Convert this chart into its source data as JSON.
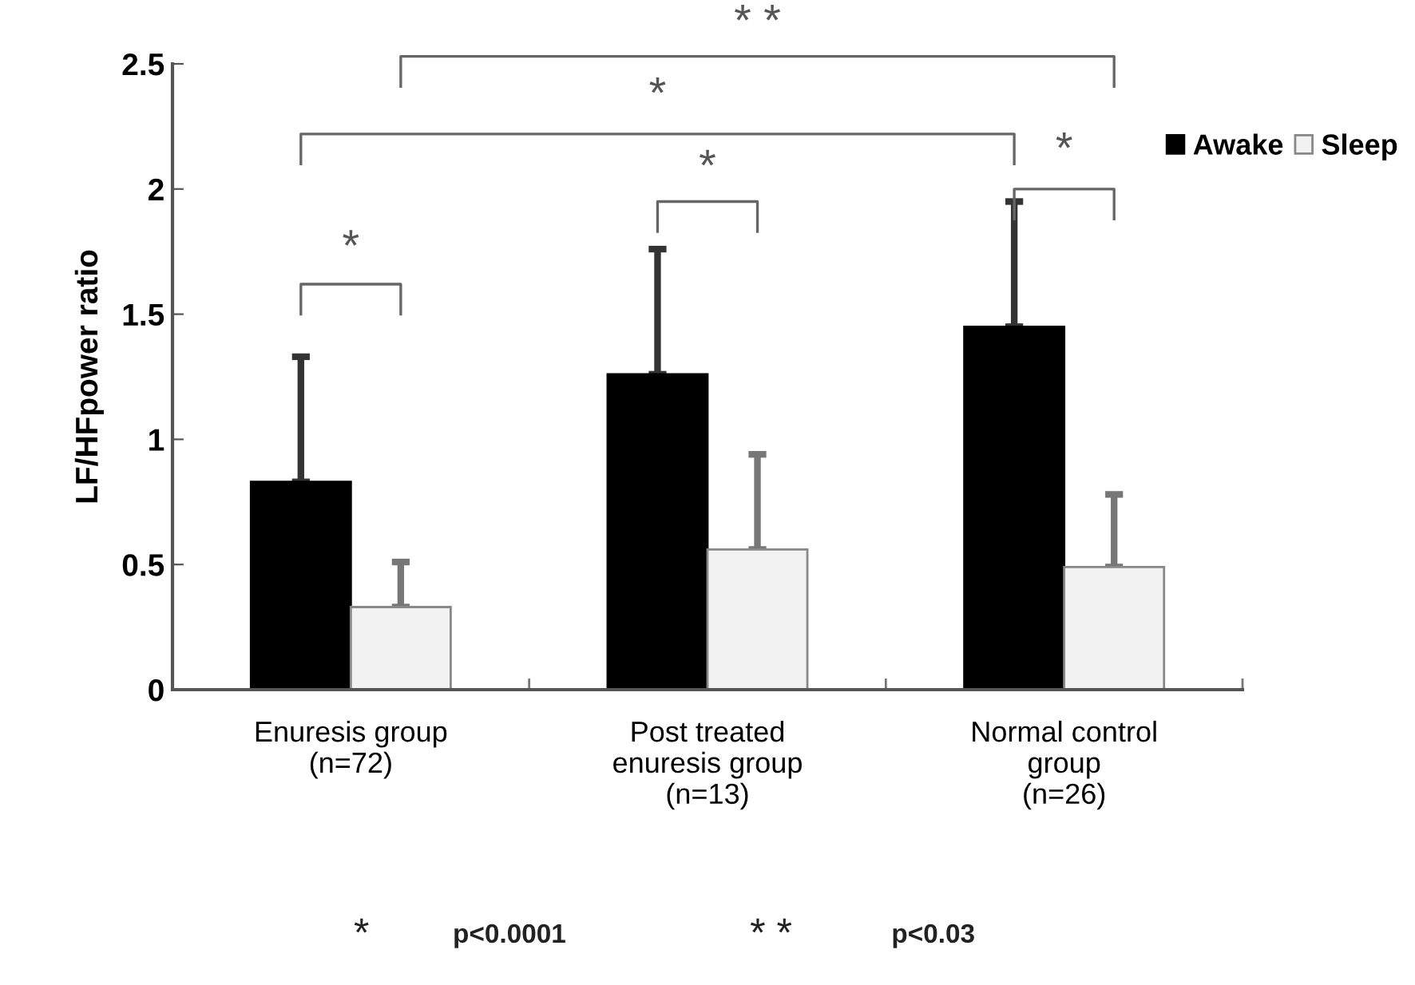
{
  "chart_data": {
    "type": "bar",
    "ylabel": "LF/HFpower ratio",
    "categories": [
      "Enuresis group\n(n=72)",
      "Post treated\nenuresis group\n(n=13)",
      "Normal control\ngroup\n(n=26)"
    ],
    "series": [
      {
        "name": "Awake",
        "color": "#000000",
        "values": [
          0.83,
          1.26,
          1.45
        ],
        "errors": [
          [
            0.83,
            1.33
          ],
          [
            1.26,
            1.76
          ],
          [
            1.45,
            1.95
          ]
        ]
      },
      {
        "name": "Sleep",
        "color": "#f2f2f2",
        "values": [
          0.33,
          0.56,
          0.49
        ],
        "errors": [
          [
            0.33,
            0.51
          ],
          [
            0.56,
            0.94
          ],
          [
            0.49,
            0.78
          ]
        ]
      }
    ],
    "ylim": [
      0,
      2.5
    ],
    "yticks": [
      0,
      0.5,
      1,
      1.5,
      2,
      2.5
    ],
    "grid": false,
    "legend": "top right",
    "annotations": [
      "*",
      "*",
      "*",
      "*",
      "* *",
      "*",
      "p<0.0001",
      "* *",
      "p<0.03"
    ]
  }
}
